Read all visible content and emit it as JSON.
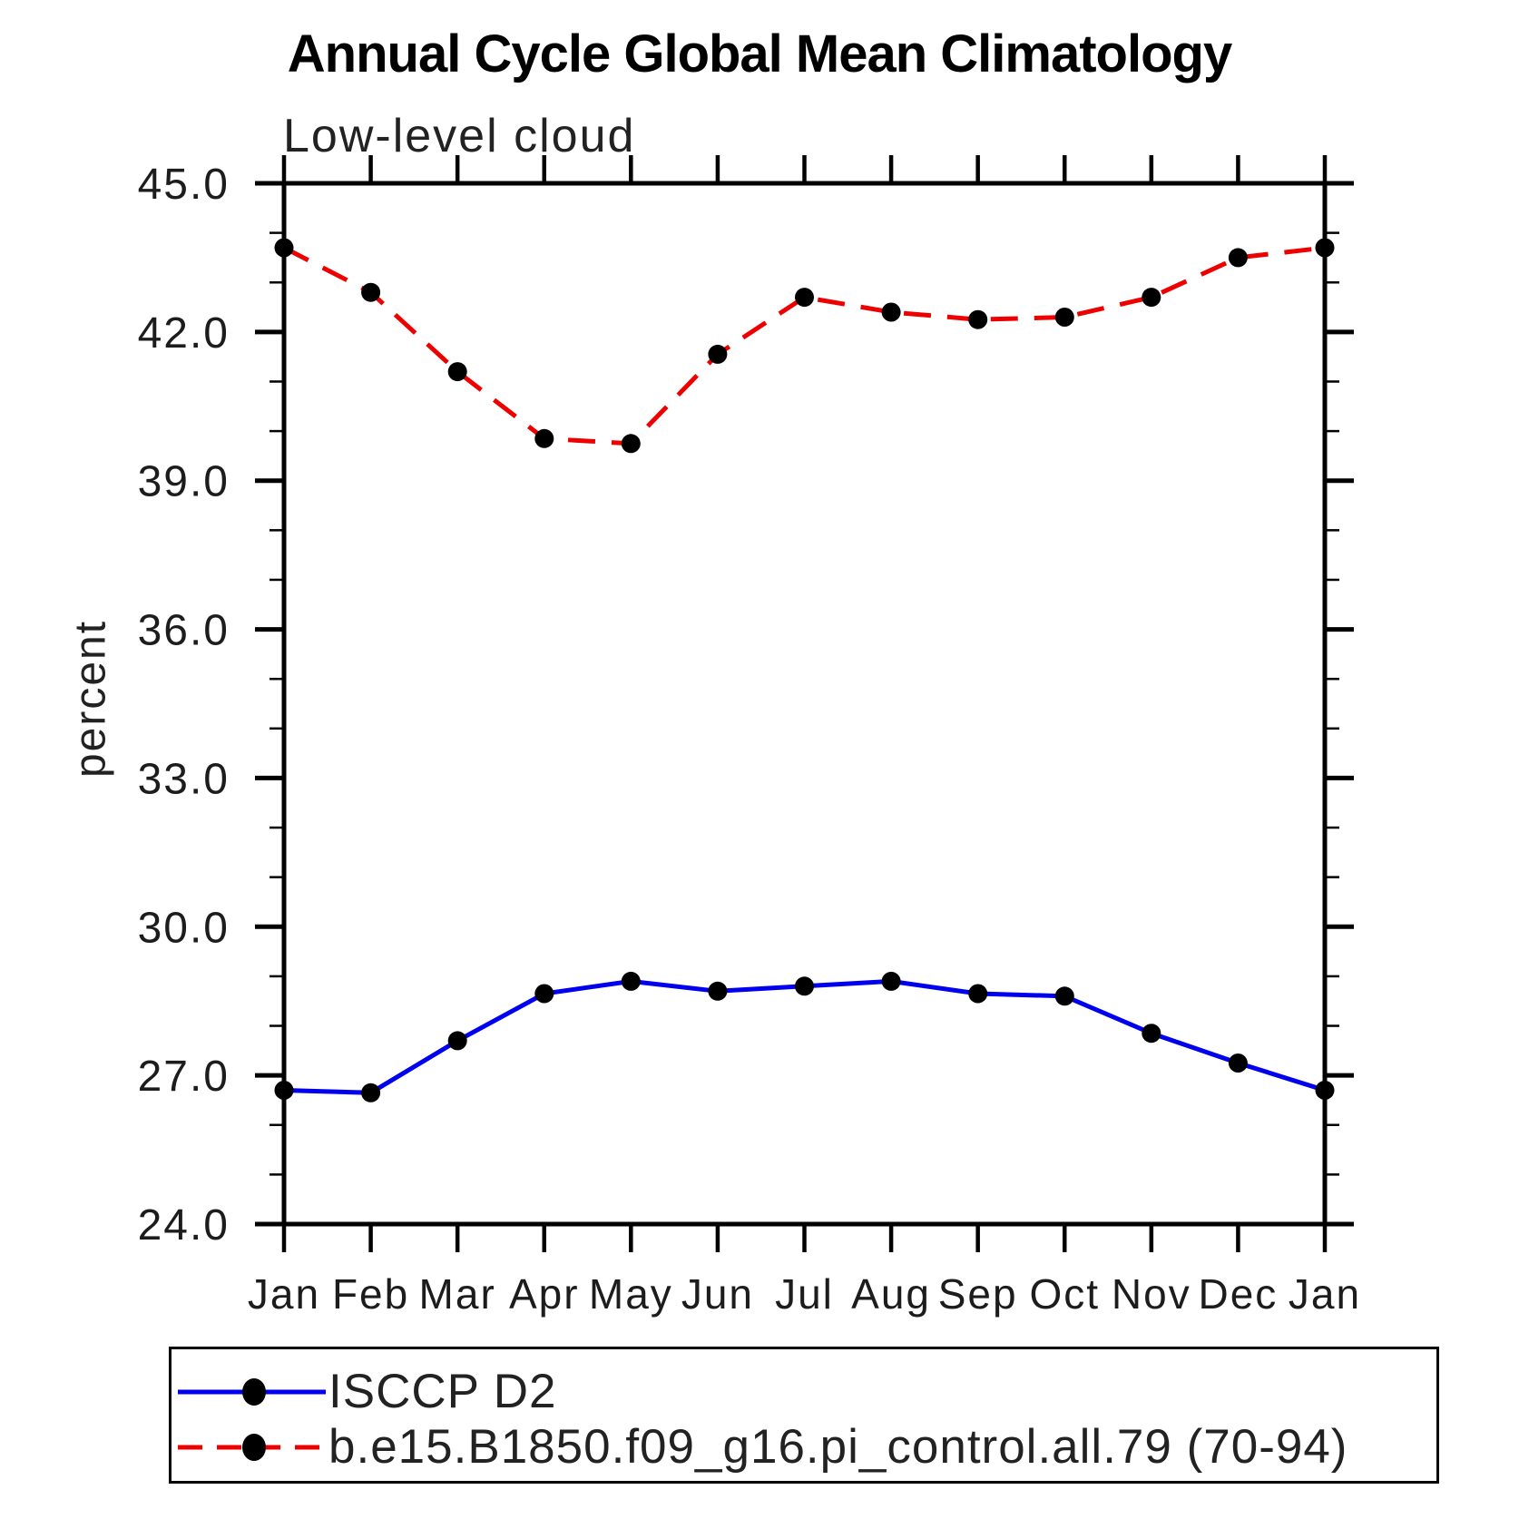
{
  "chart_data": {
    "type": "line",
    "title": "Annual Cycle Global Mean Climatology",
    "subtitle": "Low-level cloud",
    "ylabel": "percent",
    "x_tick_labels": [
      "Jan",
      "Feb",
      "Mar",
      "Apr",
      "May",
      "Jun",
      "Jul",
      "Aug",
      "Sep",
      "Oct",
      "Nov",
      "Dec",
      "Jan"
    ],
    "ylim": [
      24.0,
      45.0
    ],
    "y_tick_labels": [
      "24.0",
      "27.0",
      "30.0",
      "33.0",
      "36.0",
      "39.0",
      "42.0",
      "45.0"
    ],
    "y_minor_step": 1.0,
    "grid": false,
    "legend_position": "bottom",
    "series": [
      {
        "name": "ISCCP D2",
        "color": "#0000ee",
        "style": "solid",
        "marker": "circle",
        "marker_color": "#000000",
        "values": [
          26.7,
          26.65,
          27.7,
          28.65,
          28.9,
          28.7,
          28.8,
          28.9,
          28.65,
          28.6,
          27.85,
          27.25,
          26.7
        ]
      },
      {
        "name": "b.e15.B1850.f09_g16.pi_control.all.79 (70-94)",
        "color": "#ee0000",
        "style": "dashed",
        "marker": "circle",
        "marker_color": "#000000",
        "values": [
          43.7,
          42.8,
          41.2,
          39.85,
          39.75,
          41.55,
          42.7,
          42.4,
          42.25,
          42.3,
          42.7,
          43.5,
          43.7
        ]
      }
    ]
  }
}
